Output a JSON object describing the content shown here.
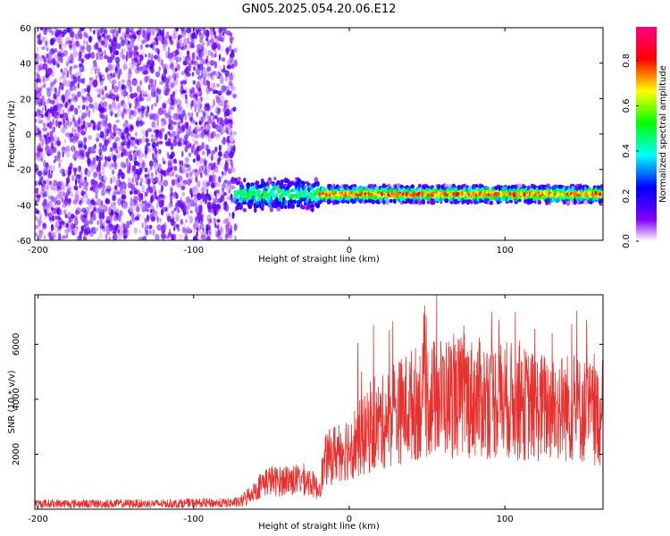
{
  "title": "GN05.2025.054.20.06.E12",
  "chart_data": [
    {
      "type": "heatmap",
      "title": "GN05.2025.054.20.06.E12",
      "xlabel": "Height of straight line (km)",
      "ylabel": "Frequency (Hz)",
      "xlim": [
        -202,
        163
      ],
      "ylim": [
        -60,
        60
      ],
      "xticks": [
        -200,
        -100,
        0,
        100
      ],
      "yticks": [
        -60,
        -40,
        -20,
        0,
        20,
        40,
        60
      ],
      "colorbar": {
        "label": "Normalized spectral amplitude",
        "range": [
          0,
          0.95
        ],
        "ticks": [
          "0.0",
          "0.2",
          "0.4",
          "0.6",
          "0.8"
        ],
        "colormap": [
          "#ffffff",
          "#8000ff",
          "#0000ff",
          "#00ffff",
          "#00ff00",
          "#ffff00",
          "#ff0000",
          "#ff0080"
        ]
      },
      "noise_region_x": [
        -202,
        -73
      ],
      "signal_band": {
        "x_start": -73,
        "x_end": 163,
        "center_frequency": -34,
        "bandwidth": 6,
        "peak_amplitude": 0.9
      }
    },
    {
      "type": "line",
      "xlabel": "Height of straight line (km)",
      "ylabel": "SNR (10 * v/v)",
      "xlim": [
        -202,
        163
      ],
      "ylim": [
        0,
        7800
      ],
      "xticks": [
        -200,
        -100,
        0,
        100
      ],
      "yticks": [
        2000,
        4000,
        6000
      ],
      "color": "#e8302e",
      "x": [
        -202,
        -180,
        -160,
        -140,
        -120,
        -100,
        -80,
        -70,
        -60,
        -55,
        -50,
        -45,
        -40,
        -35,
        -30,
        -25,
        -20,
        -15,
        -10,
        -5,
        0,
        10,
        20,
        30,
        40,
        50,
        60,
        70,
        80,
        90,
        100,
        110,
        120,
        130,
        140,
        150,
        160,
        163
      ],
      "y": [
        200,
        200,
        200,
        200,
        200,
        220,
        220,
        250,
        700,
        1000,
        1050,
        1000,
        1100,
        1050,
        1100,
        1000,
        700,
        1800,
        2000,
        2200,
        2300,
        2700,
        3100,
        3500,
        3800,
        4000,
        4100,
        4100,
        4050,
        4000,
        4000,
        3850,
        3700,
        3700,
        3700,
        3600,
        3400,
        3400
      ]
    }
  ]
}
